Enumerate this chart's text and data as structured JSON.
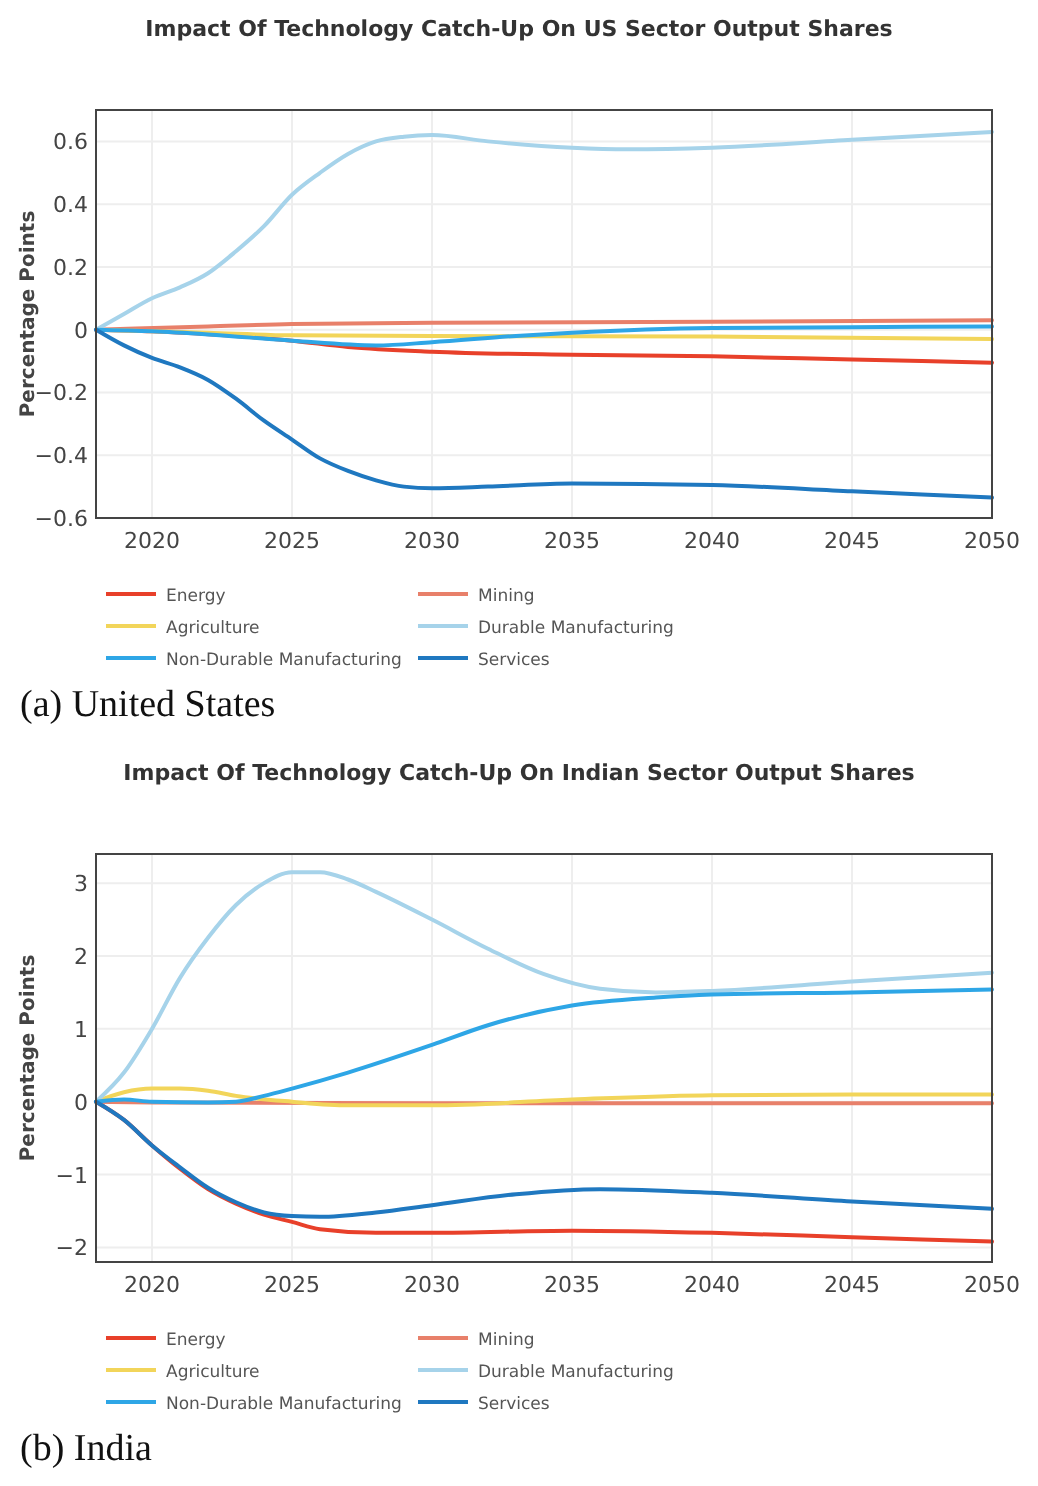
{
  "chart_data": [
    {
      "type": "line",
      "title": "Impact Of Technology Catch-Up On US Sector Output Shares",
      "ylabel": "Percentage Points",
      "annotations": [
        "(a) United States"
      ],
      "xlim": [
        2018,
        2050
      ],
      "xticks": [
        2020,
        2025,
        2030,
        2035,
        2040,
        2045,
        2050
      ],
      "ylim": [
        -0.6,
        0.7
      ],
      "yticks": [
        {
          "value": -0.6,
          "label": "−0.6"
        },
        {
          "value": -0.4,
          "label": "−0.4"
        },
        {
          "value": -0.2,
          "label": "−0.2"
        },
        0,
        0.2,
        0.4,
        0.6
      ],
      "grid": true,
      "legend": "bottom",
      "series": [
        {
          "name": "Energy",
          "color": "#e8402a",
          "x": [
            2018,
            2020,
            2023,
            2025,
            2027,
            2030,
            2035,
            2040,
            2045,
            2050
          ],
          "values": [
            0,
            -0.005,
            -0.02,
            -0.035,
            -0.055,
            -0.07,
            -0.08,
            -0.085,
            -0.095,
            -0.105
          ]
        },
        {
          "name": "Mining",
          "color": "#e8806a",
          "x": [
            2018,
            2022,
            2025,
            2030,
            2040,
            2050
          ],
          "values": [
            0,
            0.01,
            0.018,
            0.022,
            0.025,
            0.03
          ]
        },
        {
          "name": "Agriculture",
          "color": "#f2d55a",
          "x": [
            2018,
            2022,
            2025,
            2030,
            2040,
            2050
          ],
          "values": [
            0,
            -0.01,
            -0.018,
            -0.02,
            -0.022,
            -0.03
          ]
        },
        {
          "name": "Durable Manufacturing",
          "color": "#a6d3ea",
          "x": [
            2018,
            2019,
            2020,
            2021,
            2022,
            2023,
            2024,
            2025,
            2026,
            2027,
            2028,
            2029,
            2030,
            2032,
            2035,
            2037,
            2040,
            2045,
            2050
          ],
          "values": [
            0,
            0.05,
            0.1,
            0.135,
            0.18,
            0.25,
            0.33,
            0.43,
            0.5,
            0.56,
            0.6,
            0.615,
            0.62,
            0.6,
            0.58,
            0.575,
            0.58,
            0.605,
            0.63
          ]
        },
        {
          "name": "Non-Durable Manufacturing",
          "color": "#2ea6e6",
          "x": [
            2018,
            2020,
            2022,
            2025,
            2028,
            2030,
            2033,
            2035,
            2040,
            2045,
            2050
          ],
          "values": [
            0,
            -0.005,
            -0.015,
            -0.035,
            -0.05,
            -0.04,
            -0.02,
            -0.01,
            0.005,
            0.008,
            0.01
          ]
        },
        {
          "name": "Services",
          "color": "#1f78c0",
          "x": [
            2018,
            2019,
            2020,
            2021,
            2022,
            2023,
            2024,
            2025,
            2026,
            2027,
            2028,
            2029,
            2030,
            2032,
            2035,
            2040,
            2045,
            2050
          ],
          "values": [
            0,
            -0.05,
            -0.09,
            -0.12,
            -0.16,
            -0.22,
            -0.29,
            -0.35,
            -0.41,
            -0.45,
            -0.48,
            -0.5,
            -0.505,
            -0.5,
            -0.49,
            -0.495,
            -0.515,
            -0.535
          ]
        }
      ]
    },
    {
      "type": "line",
      "title": "Impact Of Technology Catch-Up On Indian Sector Output Shares",
      "ylabel": "Percentage Points",
      "annotations": [
        "(b) India"
      ],
      "xlim": [
        2018,
        2050
      ],
      "xticks": [
        2020,
        2025,
        2030,
        2035,
        2040,
        2045,
        2050
      ],
      "ylim": [
        -2.2,
        3.4
      ],
      "yticks": [
        {
          "value": -2,
          "label": "−2"
        },
        {
          "value": -1,
          "label": "−1"
        },
        0,
        1,
        2,
        3
      ],
      "grid": true,
      "legend": "bottom",
      "series": [
        {
          "name": "Energy",
          "color": "#e8402a",
          "x": [
            2018,
            2019,
            2020,
            2021,
            2022,
            2023,
            2024,
            2025,
            2026,
            2028,
            2030,
            2035,
            2040,
            2045,
            2050
          ],
          "values": [
            0,
            -0.25,
            -0.6,
            -0.92,
            -1.2,
            -1.4,
            -1.55,
            -1.65,
            -1.75,
            -1.8,
            -1.8,
            -1.77,
            -1.8,
            -1.86,
            -1.92
          ]
        },
        {
          "name": "Mining",
          "color": "#e8806a",
          "x": [
            2018,
            2020,
            2030,
            2050
          ],
          "values": [
            0,
            -0.01,
            -0.02,
            -0.02
          ]
        },
        {
          "name": "Agriculture",
          "color": "#f2d55a",
          "x": [
            2018,
            2019,
            2020,
            2021,
            2022,
            2023,
            2025,
            2027,
            2030,
            2035,
            2040,
            2045,
            2050
          ],
          "values": [
            0,
            0.13,
            0.18,
            0.18,
            0.15,
            0.08,
            0,
            -0.05,
            -0.05,
            0.03,
            0.09,
            0.1,
            0.1
          ]
        },
        {
          "name": "Durable Manufacturing",
          "color": "#a6d3ea",
          "x": [
            2018,
            2019,
            2020,
            2021,
            2022,
            2023,
            2024,
            2025,
            2026,
            2027,
            2028,
            2030,
            2032,
            2034,
            2036,
            2038,
            2040,
            2045,
            2050
          ],
          "values": [
            0,
            0.4,
            1.0,
            1.7,
            2.25,
            2.7,
            3.0,
            3.15,
            3.15,
            3.05,
            2.88,
            2.5,
            2.1,
            1.75,
            1.55,
            1.5,
            1.52,
            1.65,
            1.77
          ]
        },
        {
          "name": "Non-Durable Manufacturing",
          "color": "#2ea6e6",
          "x": [
            2018,
            2019,
            2020,
            2022,
            2023,
            2024,
            2025,
            2027,
            2030,
            2032,
            2035,
            2038,
            2040,
            2045,
            2050
          ],
          "values": [
            0,
            0.03,
            0,
            -0.01,
            0,
            0.08,
            0.18,
            0.4,
            0.78,
            1.05,
            1.32,
            1.43,
            1.47,
            1.5,
            1.54
          ]
        },
        {
          "name": "Services",
          "color": "#1f78c0",
          "x": [
            2018,
            2019,
            2020,
            2021,
            2022,
            2023,
            2024,
            2025,
            2026,
            2028,
            2030,
            2033,
            2036,
            2040,
            2045,
            2050
          ],
          "values": [
            0,
            -0.25,
            -0.6,
            -0.9,
            -1.18,
            -1.38,
            -1.52,
            -1.57,
            -1.58,
            -1.52,
            -1.42,
            -1.27,
            -1.2,
            -1.25,
            -1.37,
            -1.47
          ]
        }
      ]
    }
  ]
}
